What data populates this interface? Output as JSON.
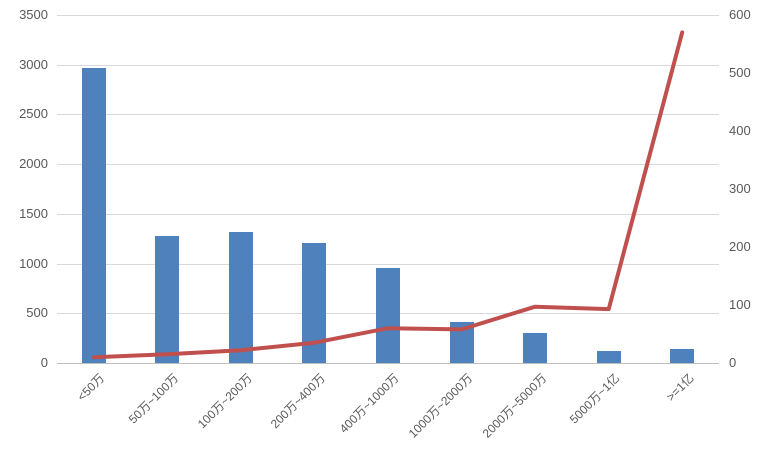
{
  "chart_data": {
    "type": "combo",
    "title": "",
    "legend": "none",
    "grid": true,
    "categories": [
      "<50万",
      "50万~100万",
      "100万~200万",
      "200万~400万",
      "400万~1000万",
      "1000万~2000万",
      "2000万~5000万",
      "5000万~1亿",
      ">=1亿"
    ],
    "series": [
      {
        "name": "bar-series",
        "type": "bar",
        "axis": "left",
        "values": [
          2970,
          1280,
          1320,
          1210,
          960,
          410,
          305,
          125,
          145
        ]
      },
      {
        "name": "line-series",
        "type": "line",
        "axis": "right",
        "values": [
          10,
          15,
          22,
          35,
          60,
          58,
          97,
          93,
          570
        ]
      }
    ],
    "left_axis": {
      "min": 0,
      "max": 3500,
      "step": 500,
      "tick_labels": [
        "0",
        "500",
        "1000",
        "1500",
        "2000",
        "2500",
        "3000",
        "3500"
      ]
    },
    "right_axis": {
      "min": 0,
      "max": 600,
      "step": 100,
      "tick_labels": [
        "0",
        "100",
        "200",
        "300",
        "400",
        "500",
        "600"
      ]
    },
    "colors": {
      "bar": "#4f81bd",
      "line": "#c0504d",
      "gridline": "#d9d9d9",
      "axis_line": "#bfbfbf",
      "tick_text": "#595959",
      "background": "#ffffff"
    }
  }
}
